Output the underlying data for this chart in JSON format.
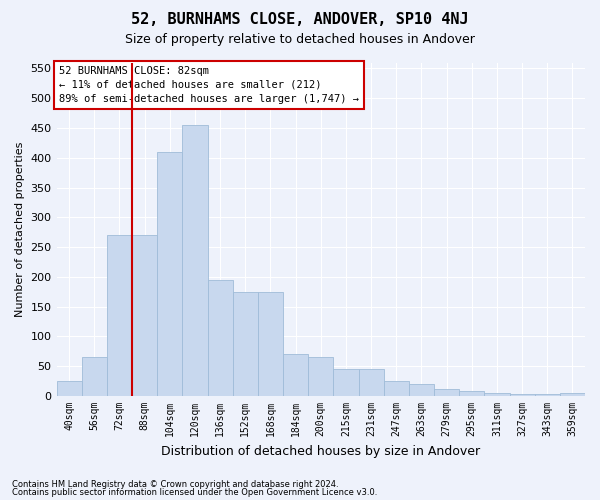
{
  "title": "52, BURNHAMS CLOSE, ANDOVER, SP10 4NJ",
  "subtitle": "Size of property relative to detached houses in Andover",
  "xlabel": "Distribution of detached houses by size in Andover",
  "ylabel": "Number of detached properties",
  "footnote1": "Contains HM Land Registry data © Crown copyright and database right 2024.",
  "footnote2": "Contains public sector information licensed under the Open Government Licence v3.0.",
  "annotation_line1": "52 BURNHAMS CLOSE: 82sqm",
  "annotation_line2": "← 11% of detached houses are smaller (212)",
  "annotation_line3": "89% of semi-detached houses are larger (1,747) →",
  "bar_labels": [
    "40sqm",
    "56sqm",
    "72sqm",
    "88sqm",
    "104sqm",
    "120sqm",
    "136sqm",
    "152sqm",
    "168sqm",
    "184sqm",
    "200sqm",
    "215sqm",
    "231sqm",
    "247sqm",
    "263sqm",
    "279sqm",
    "295sqm",
    "311sqm",
    "327sqm",
    "343sqm",
    "359sqm"
  ],
  "bar_values": [
    25,
    65,
    270,
    270,
    410,
    455,
    195,
    175,
    175,
    70,
    65,
    45,
    45,
    25,
    20,
    12,
    8,
    5,
    4,
    3,
    5
  ],
  "bar_color": "#c8d8ee",
  "bar_edge_color": "#a0bcd8",
  "vline_color": "#cc0000",
  "ylim": [
    0,
    560
  ],
  "yticks": [
    0,
    50,
    100,
    150,
    200,
    250,
    300,
    350,
    400,
    450,
    500,
    550
  ],
  "bg_color": "#eef2fb",
  "grid_color": "#ffffff",
  "annotation_box_edge_color": "#cc0000",
  "title_fontsize": 11,
  "subtitle_fontsize": 9
}
